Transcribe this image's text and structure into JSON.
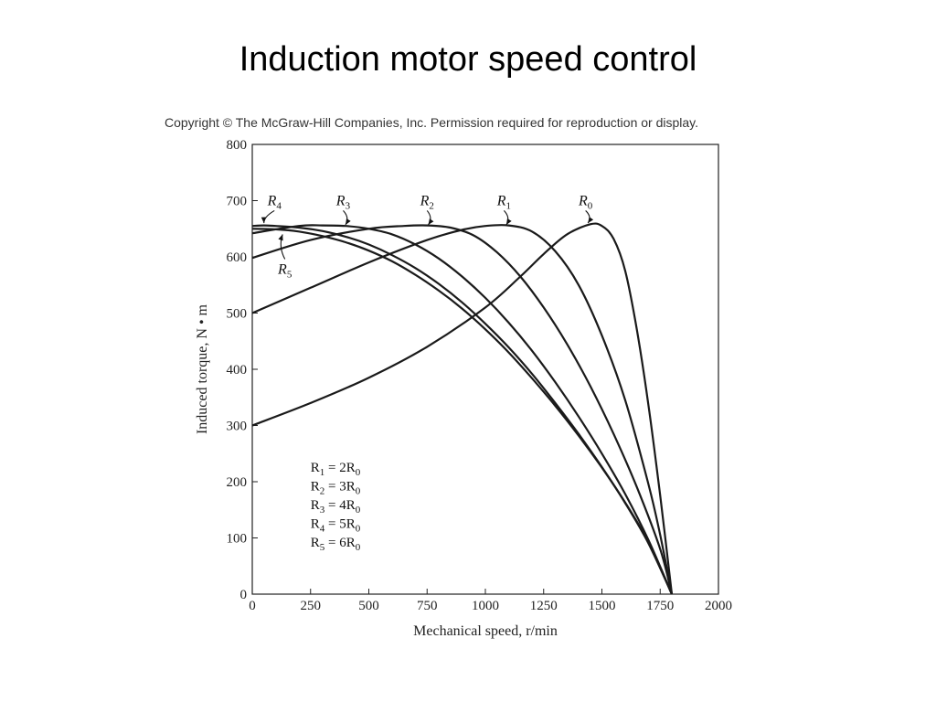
{
  "slide": {
    "title": "Induction motor speed control",
    "copyright": "Copyright © The McGraw-Hill Companies, Inc. Permission required for reproduction or display."
  },
  "chart_data": {
    "type": "line",
    "title": "",
    "xlabel": "Mechanical speed, r/min",
    "ylabel": "Induced torque, N • m",
    "xlim": [
      0,
      2000
    ],
    "ylim": [
      0,
      800
    ],
    "xticks": [
      0,
      250,
      500,
      750,
      1000,
      1250,
      1500,
      1750,
      2000
    ],
    "yticks": [
      0,
      100,
      200,
      300,
      400,
      500,
      600,
      700,
      800
    ],
    "grid": false,
    "line_color": "#1a1a1a",
    "series": [
      {
        "name": "R0",
        "x": [
          0,
          250,
          500,
          750,
          1000,
          1150,
          1250,
          1350,
          1450,
          1500,
          1550,
          1600,
          1650,
          1700,
          1750,
          1800
        ],
        "y": [
          300,
          340,
          385,
          440,
          510,
          565,
          605,
          640,
          658,
          655,
          632,
          575,
          470,
          335,
          175,
          0
        ]
      },
      {
        "name": "R1",
        "x": [
          0,
          250,
          500,
          750,
          900,
          1000,
          1100,
          1200,
          1300,
          1400,
          1500,
          1600,
          1700,
          1750,
          1800
        ],
        "y": [
          500,
          545,
          590,
          630,
          648,
          655,
          656,
          645,
          610,
          550,
          460,
          345,
          195,
          105,
          0
        ]
      },
      {
        "name": "R2",
        "x": [
          0,
          250,
          500,
          650,
          750,
          850,
          950,
          1050,
          1150,
          1250,
          1350,
          1450,
          1550,
          1650,
          1750,
          1800
        ],
        "y": [
          598,
          630,
          650,
          655,
          656,
          652,
          638,
          608,
          565,
          510,
          445,
          370,
          285,
          190,
          80,
          0
        ]
      },
      {
        "name": "R3",
        "x": [
          0,
          200,
          300,
          400,
          500,
          600,
          700,
          800,
          900,
          1000,
          1100,
          1200,
          1300,
          1400,
          1500,
          1600,
          1700,
          1800
        ],
        "y": [
          642,
          655,
          656,
          655,
          650,
          640,
          622,
          597,
          565,
          527,
          483,
          433,
          377,
          316,
          250,
          178,
          96,
          0
        ]
      },
      {
        "name": "R4",
        "x": [
          0,
          50,
          100,
          200,
          300,
          400,
          500,
          600,
          700,
          800,
          900,
          1000,
          1100,
          1200,
          1300,
          1400,
          1500,
          1600,
          1700,
          1800
        ],
        "y": [
          655,
          656,
          655,
          652,
          646,
          636,
          622,
          603,
          580,
          552,
          519,
          481,
          439,
          392,
          340,
          285,
          226,
          162,
          90,
          0
        ]
      },
      {
        "name": "R5",
        "x": [
          0,
          100,
          200,
          300,
          400,
          500,
          600,
          700,
          800,
          900,
          1000,
          1100,
          1200,
          1300,
          1400,
          1500,
          1600,
          1700,
          1800
        ],
        "y": [
          650,
          649,
          645,
          637,
          626,
          611,
          592,
          568,
          540,
          508,
          471,
          430,
          384,
          335,
          282,
          225,
          163,
          92,
          0
        ]
      }
    ],
    "curve_labels": [
      {
        "series": "R4",
        "base": "R",
        "sub": "4",
        "tx": 95,
        "ty": 692,
        "ax": 50,
        "ay": 660
      },
      {
        "series": "R3",
        "base": "R",
        "sub": "3",
        "tx": 390,
        "ty": 692,
        "ax": 400,
        "ay": 657
      },
      {
        "series": "R2",
        "base": "R",
        "sub": "2",
        "tx": 750,
        "ty": 692,
        "ax": 755,
        "ay": 657
      },
      {
        "series": "R1",
        "base": "R",
        "sub": "1",
        "tx": 1080,
        "ty": 692,
        "ax": 1090,
        "ay": 657
      },
      {
        "series": "R0",
        "base": "R",
        "sub": "0",
        "tx": 1430,
        "ty": 692,
        "ax": 1440,
        "ay": 660
      },
      {
        "series": "R5",
        "base": "R",
        "sub": "5",
        "tx": 140,
        "ty": 570,
        "ax": 130,
        "ay": 640
      }
    ],
    "legend": [
      {
        "base": "R",
        "sub": "1",
        "rel": " = 2R",
        "rsub": "0"
      },
      {
        "base": "R",
        "sub": "2",
        "rel": " = 3R",
        "rsub": "0"
      },
      {
        "base": "R",
        "sub": "3",
        "rel": " = 4R",
        "rsub": "0"
      },
      {
        "base": "R",
        "sub": "4",
        "rel": " = 5R",
        "rsub": "0"
      },
      {
        "base": "R",
        "sub": "5",
        "rel": " = 6R",
        "rsub": "0"
      }
    ]
  }
}
